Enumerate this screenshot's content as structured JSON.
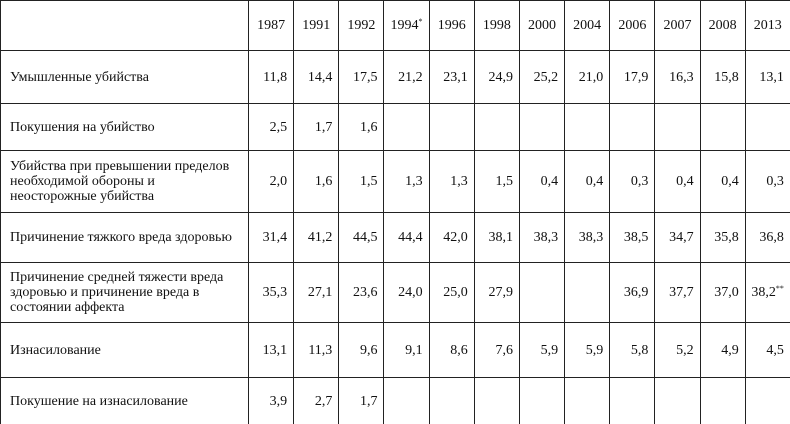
{
  "table": {
    "header": [
      null,
      "1987",
      "1991",
      "1992",
      {
        "text": "1994",
        "sup": "*"
      },
      "1996",
      "1998",
      "2000",
      "2004",
      "2006",
      "2007",
      "2008",
      "2013"
    ],
    "rows": [
      {
        "label": "Умышленные убийства",
        "values": [
          "11,8",
          "14,4",
          "17,5",
          "21,2",
          "23,1",
          "24,9",
          "25,2",
          "21,0",
          "17,9",
          "16,3",
          "15,8",
          "13,1"
        ]
      },
      {
        "label": "Покушения на убийство",
        "values": [
          "2,5",
          "1,7",
          "1,6",
          null,
          null,
          null,
          null,
          null,
          null,
          null,
          null,
          null
        ]
      },
      {
        "label": "Убийства при превышении пределов необходимой обороны и неосторожные убийства",
        "values": [
          "2,0",
          "1,6",
          "1,5",
          "1,3",
          "1,3",
          "1,5",
          "0,4",
          "0,4",
          "0,3",
          "0,4",
          "0,4",
          "0,3"
        ]
      },
      {
        "label": "Причинение тяжкого вреда здоровью",
        "values": [
          "31,4",
          "41,2",
          "44,5",
          "44,4",
          "42,0",
          "38,1",
          "38,3",
          "38,3",
          "38,5",
          "34,7",
          "35,8",
          "36,8"
        ]
      },
      {
        "label": "Причинение средней тяжести вреда здоровью и причинение вреда в состоянии аффекта",
        "values": [
          "35,3",
          "27,1",
          "23,6",
          "24,0",
          "25,0",
          "27,9",
          null,
          null,
          "36,9",
          "37,7",
          "37,0",
          {
            "text": "38,2",
            "sup": "**"
          }
        ]
      },
      {
        "label": "Изнасилование",
        "values": [
          "13,1",
          "11,3",
          "9,6",
          "9,1",
          "8,6",
          "7,6",
          "5,9",
          "5,9",
          "5,8",
          "5,2",
          "4,9",
          "4,5"
        ]
      },
      {
        "label": "Покушение на изнасилование",
        "values": [
          "3,9",
          "2,7",
          "1,7",
          null,
          null,
          null,
          null,
          null,
          null,
          null,
          null,
          null
        ]
      }
    ]
  }
}
